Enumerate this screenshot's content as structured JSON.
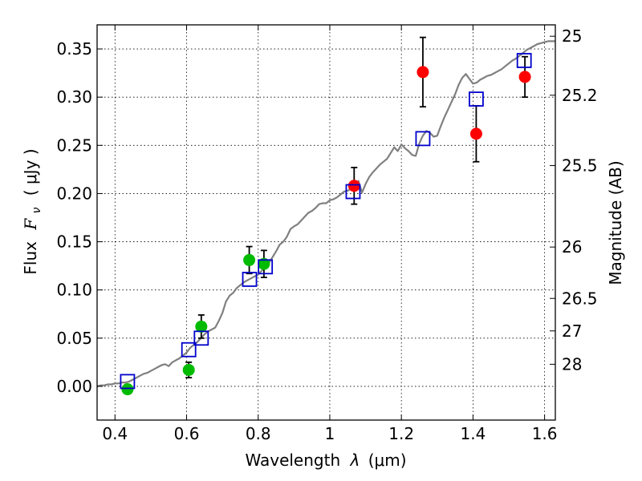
{
  "chart_data": {
    "type": "scatter",
    "xlabel_prefix": "Wavelength",
    "xlabel_symbol": "λ",
    "xlabel_unit": "(μm)",
    "ylabel_prefix": "Flux",
    "ylabel_symbol": "F",
    "ylabel_subscript": "ν",
    "ylabel_unit": "( μJy )",
    "y2label": "Magnitude (AB)",
    "xlim": [
      0.35,
      1.63
    ],
    "ylim": [
      -0.035,
      0.375
    ],
    "xticks": [
      0.4,
      0.6,
      0.8,
      1.0,
      1.2,
      1.4,
      1.6
    ],
    "xtick_labels": [
      "0.4",
      "0.6",
      "0.8",
      "1",
      "1.2",
      "1.4",
      "1.6"
    ],
    "yticks": [
      0.0,
      0.05,
      0.1,
      0.15,
      0.2,
      0.25,
      0.3,
      0.35
    ],
    "ytick_labels": [
      "0.00",
      "0.05",
      "0.10",
      "0.15",
      "0.20",
      "0.25",
      "0.30",
      "0.35"
    ],
    "mag_ticks": [
      {
        "label": "25",
        "flux": 0.3632
      },
      {
        "label": "25.2",
        "flux": 0.302
      },
      {
        "label": "25.5",
        "flux": 0.229
      },
      {
        "label": "26",
        "flux": 0.1445
      },
      {
        "label": "26.5",
        "flux": 0.0912
      },
      {
        "label": "27",
        "flux": 0.0575
      },
      {
        "label": "28",
        "flux": 0.0229
      }
    ],
    "grid": true,
    "colors": {
      "model": "#808080",
      "model_phot": "#0000cc",
      "obs_red": "#ff0000",
      "obs_green": "#00bb00",
      "errorbar": "#000000"
    },
    "series": [
      {
        "name": "model spectrum",
        "style": "line",
        "x": [
          0.35,
          0.36,
          0.37,
          0.38,
          0.39,
          0.4,
          0.41,
          0.42,
          0.43,
          0.44,
          0.45,
          0.46,
          0.47,
          0.48,
          0.49,
          0.5,
          0.51,
          0.52,
          0.53,
          0.54,
          0.55,
          0.56,
          0.57,
          0.58,
          0.59,
          0.6,
          0.61,
          0.62,
          0.63,
          0.64,
          0.65,
          0.66,
          0.67,
          0.68,
          0.69,
          0.7,
          0.71,
          0.72,
          0.73,
          0.74,
          0.75,
          0.76,
          0.77,
          0.78,
          0.79,
          0.8,
          0.81,
          0.82,
          0.83,
          0.84,
          0.85,
          0.86,
          0.87,
          0.88,
          0.89,
          0.9,
          0.91,
          0.92,
          0.93,
          0.94,
          0.95,
          0.96,
          0.97,
          0.98,
          0.99,
          1.0,
          1.01,
          1.02,
          1.03,
          1.04,
          1.05,
          1.06,
          1.07,
          1.08,
          1.09,
          1.1,
          1.11,
          1.12,
          1.13,
          1.14,
          1.15,
          1.16,
          1.17,
          1.18,
          1.19,
          1.2,
          1.21,
          1.22,
          1.23,
          1.24,
          1.25,
          1.26,
          1.27,
          1.28,
          1.29,
          1.3,
          1.31,
          1.32,
          1.33,
          1.34,
          1.35,
          1.36,
          1.37,
          1.38,
          1.39,
          1.4,
          1.41,
          1.42,
          1.43,
          1.44,
          1.45,
          1.46,
          1.47,
          1.48,
          1.49,
          1.5,
          1.51,
          1.52,
          1.53,
          1.54,
          1.55,
          1.56,
          1.57,
          1.58,
          1.59,
          1.6,
          1.61,
          1.62,
          1.63
        ],
        "y": [
          0.0,
          0.001,
          0.001,
          0.002,
          0.002,
          0.003,
          0.003,
          0.004,
          0.004,
          0.005,
          0.007,
          0.009,
          0.011,
          0.013,
          0.014,
          0.016,
          0.018,
          0.02,
          0.022,
          0.023,
          0.021,
          0.025,
          0.027,
          0.029,
          0.032,
          0.035,
          0.04,
          0.043,
          0.046,
          0.05,
          0.054,
          0.057,
          0.059,
          0.061,
          0.068,
          0.076,
          0.088,
          0.094,
          0.097,
          0.102,
          0.105,
          0.108,
          0.11,
          0.112,
          0.114,
          0.116,
          0.12,
          0.124,
          0.128,
          0.134,
          0.14,
          0.147,
          0.15,
          0.155,
          0.163,
          0.166,
          0.168,
          0.172,
          0.176,
          0.18,
          0.182,
          0.185,
          0.189,
          0.19,
          0.19,
          0.193,
          0.194,
          0.196,
          0.199,
          0.202,
          0.203,
          0.205,
          0.208,
          0.213,
          0.201,
          0.21,
          0.217,
          0.222,
          0.226,
          0.23,
          0.233,
          0.236,
          0.242,
          0.248,
          0.244,
          0.251,
          0.247,
          0.244,
          0.24,
          0.239,
          0.252,
          0.26,
          0.265,
          0.263,
          0.259,
          0.26,
          0.27,
          0.279,
          0.287,
          0.295,
          0.303,
          0.313,
          0.32,
          0.324,
          0.319,
          0.314,
          0.315,
          0.318,
          0.32,
          0.322,
          0.323,
          0.325,
          0.327,
          0.329,
          0.332,
          0.335,
          0.338,
          0.34,
          0.343,
          0.346,
          0.349,
          0.351,
          0.353,
          0.355,
          0.356,
          0.357,
          0.358,
          0.358,
          0.358
        ]
      },
      {
        "name": "model photometry",
        "style": "open-square",
        "points": [
          {
            "x": 0.435,
            "y": 0.005
          },
          {
            "x": 0.606,
            "y": 0.038
          },
          {
            "x": 0.641,
            "y": 0.05
          },
          {
            "x": 0.776,
            "y": 0.111
          },
          {
            "x": 0.82,
            "y": 0.124
          },
          {
            "x": 1.065,
            "y": 0.202
          },
          {
            "x": 1.26,
            "y": 0.257
          },
          {
            "x": 1.409,
            "y": 0.298
          },
          {
            "x": 1.543,
            "y": 0.338
          }
        ]
      },
      {
        "name": "observed (green)",
        "style": "filled-circle",
        "color_key": "obs_green",
        "points": [
          {
            "x": 0.435,
            "y": -0.003
          },
          {
            "x": 0.606,
            "y": 0.017,
            "err": 0.008
          },
          {
            "x": 0.641,
            "y": 0.062,
            "err": 0.012
          },
          {
            "x": 0.775,
            "y": 0.131,
            "err": 0.014
          },
          {
            "x": 0.816,
            "y": 0.127,
            "err": 0.014
          }
        ]
      },
      {
        "name": "observed (red)",
        "style": "filled-circle",
        "color_key": "obs_red",
        "points": [
          {
            "x": 1.068,
            "y": 0.208,
            "err": 0.019
          },
          {
            "x": 1.26,
            "y": 0.326,
            "err": 0.036
          },
          {
            "x": 1.409,
            "y": 0.262,
            "err": 0.029
          },
          {
            "x": 1.545,
            "y": 0.321,
            "err": 0.021
          }
        ]
      }
    ]
  }
}
